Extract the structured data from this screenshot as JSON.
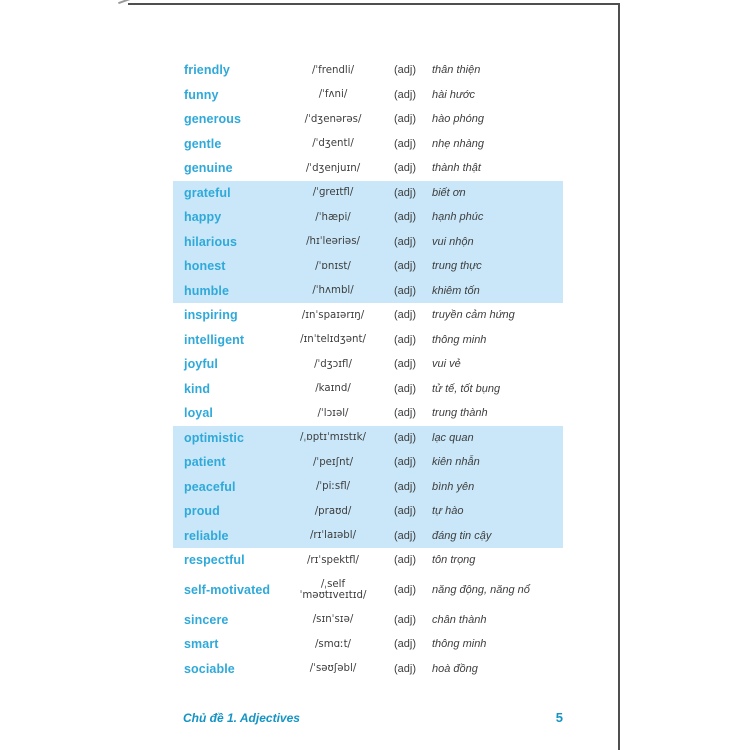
{
  "colors": {
    "accent": "#2fa9d9",
    "highlight": "#c9e7f8",
    "footer": "#1594c4",
    "edge": "#4f4f4f"
  },
  "footer": {
    "chapter": "Chủ đề 1. Adjectives",
    "page_number": "5"
  },
  "table": {
    "columns": [
      "word",
      "pronunciation",
      "part_of_speech",
      "meaning"
    ],
    "rows": [
      {
        "word": "friendly",
        "ipa": "/ˈfrendli/",
        "pos": "(adj)",
        "meaning": "thân thiện",
        "highlight": false
      },
      {
        "word": "funny",
        "ipa": "/ˈfʌni/",
        "pos": "(adj)",
        "meaning": "hài hước",
        "highlight": false
      },
      {
        "word": "generous",
        "ipa": "/ˈdʒenərəs/",
        "pos": "(adj)",
        "meaning": "hào phóng",
        "highlight": false
      },
      {
        "word": "gentle",
        "ipa": "/ˈdʒentl/",
        "pos": "(adj)",
        "meaning": "nhẹ nhàng",
        "highlight": false
      },
      {
        "word": "genuine",
        "ipa": "/ˈdʒenjuɪn/",
        "pos": "(adj)",
        "meaning": "thành thật",
        "highlight": false
      },
      {
        "word": "grateful",
        "ipa": "/ˈɡreɪtfl/",
        "pos": "(adj)",
        "meaning": "biết ơn",
        "highlight": true
      },
      {
        "word": "happy",
        "ipa": "/ˈhæpi/",
        "pos": "(adj)",
        "meaning": "hạnh phúc",
        "highlight": true
      },
      {
        "word": "hilarious",
        "ipa": "/hɪˈleəriəs/",
        "pos": "(adj)",
        "meaning": "vui nhộn",
        "highlight": true
      },
      {
        "word": "honest",
        "ipa": "/ˈɒnɪst/",
        "pos": "(adj)",
        "meaning": "trung thực",
        "highlight": true
      },
      {
        "word": "humble",
        "ipa": "/ˈhʌmbl/",
        "pos": "(adj)",
        "meaning": "khiêm tốn",
        "highlight": true
      },
      {
        "word": "inspiring",
        "ipa": "/ɪnˈspaɪərɪŋ/",
        "pos": "(adj)",
        "meaning": "truyền cảm hứng",
        "highlight": false
      },
      {
        "word": "intelligent",
        "ipa": "/ɪnˈtelɪdʒənt/",
        "pos": "(adj)",
        "meaning": "thông minh",
        "highlight": false
      },
      {
        "word": "joyful",
        "ipa": "/ˈdʒɔɪfl/",
        "pos": "(adj)",
        "meaning": "vui vẻ",
        "highlight": false
      },
      {
        "word": "kind",
        "ipa": "/kaɪnd/",
        "pos": "(adj)",
        "meaning": "tử tế, tốt bụng",
        "highlight": false
      },
      {
        "word": "loyal",
        "ipa": "/ˈlɔɪəl/",
        "pos": "(adj)",
        "meaning": "trung thành",
        "highlight": false
      },
      {
        "word": "optimistic",
        "ipa": "/ˌɒptɪˈmɪstɪk/",
        "pos": "(adj)",
        "meaning": "lạc quan",
        "highlight": true
      },
      {
        "word": "patient",
        "ipa": "/ˈpeɪʃnt/",
        "pos": "(adj)",
        "meaning": "kiên nhẫn",
        "highlight": true
      },
      {
        "word": "peaceful",
        "ipa": "/ˈpiːsfl/",
        "pos": "(adj)",
        "meaning": "bình yên",
        "highlight": true
      },
      {
        "word": "proud",
        "ipa": "/praʊd/",
        "pos": "(adj)",
        "meaning": "tự hào",
        "highlight": true
      },
      {
        "word": "reliable",
        "ipa": "/rɪˈlaɪəbl/",
        "pos": "(adj)",
        "meaning": "đáng tin cậy",
        "highlight": true
      },
      {
        "word": "respectful",
        "ipa": "/rɪˈspektfl/",
        "pos": "(adj)",
        "meaning": "tôn trọng",
        "highlight": false
      },
      {
        "word": "self-motivated",
        "ipa": "/ˌself ˈməʊtɪveɪtɪd/",
        "ipa_lines": [
          "/ˌself",
          "ˈməʊtɪveɪtɪd/"
        ],
        "pos": "(adj)",
        "meaning": "năng động, năng nổ",
        "highlight": false
      },
      {
        "word": "sincere",
        "ipa": "/sɪnˈsɪə/",
        "pos": "(adj)",
        "meaning": "chân thành",
        "highlight": false
      },
      {
        "word": "smart",
        "ipa": "/smɑːt/",
        "pos": "(adj)",
        "meaning": "thông minh",
        "highlight": false
      },
      {
        "word": "sociable",
        "ipa": "/ˈsəʊʃəbl/",
        "pos": "(adj)",
        "meaning": "hoà đồng",
        "highlight": false
      }
    ]
  }
}
